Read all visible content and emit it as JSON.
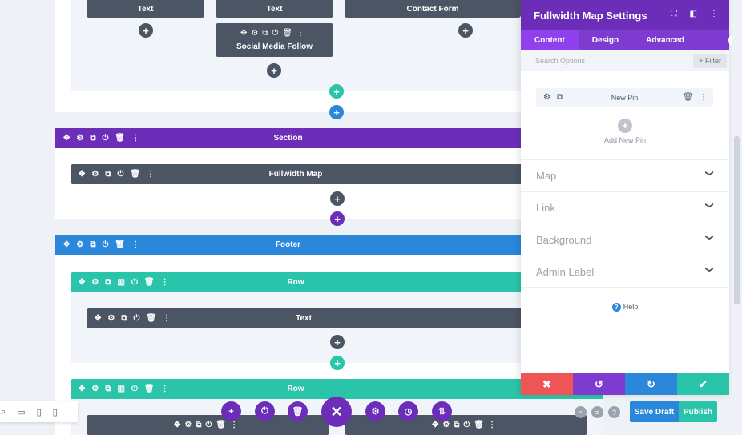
{
  "builder": {
    "top_row": {
      "modules": [
        "Text",
        "Text",
        "Contact Form"
      ],
      "social_module": "Social Media Follow"
    },
    "section_bar": "Section",
    "fullwidth_map_module": "Fullwidth Map",
    "footer_bar": "Footer",
    "row1_bar": "Row",
    "row1_module": "Text",
    "row2_bar": "Row"
  },
  "settings": {
    "title": "Fullwidth Map Settings",
    "tabs": [
      "Content",
      "Design",
      "Advanced"
    ],
    "active_tab": "Content",
    "search_placeholder": "Search Options",
    "filter_label": "Filter",
    "pin_label": "New Pin",
    "add_pin_label": "Add New Pin",
    "accordions": [
      "Map",
      "Link",
      "Background",
      "Admin Label"
    ],
    "help_label": "Help"
  },
  "footer_controls": {
    "save_draft": "Save Draft",
    "publish": "Publish"
  },
  "colors": {
    "purple": "#6c2eb9",
    "blue": "#2b87da",
    "teal": "#29c4a9",
    "dark": "#4b5563",
    "red": "#ef5555"
  }
}
